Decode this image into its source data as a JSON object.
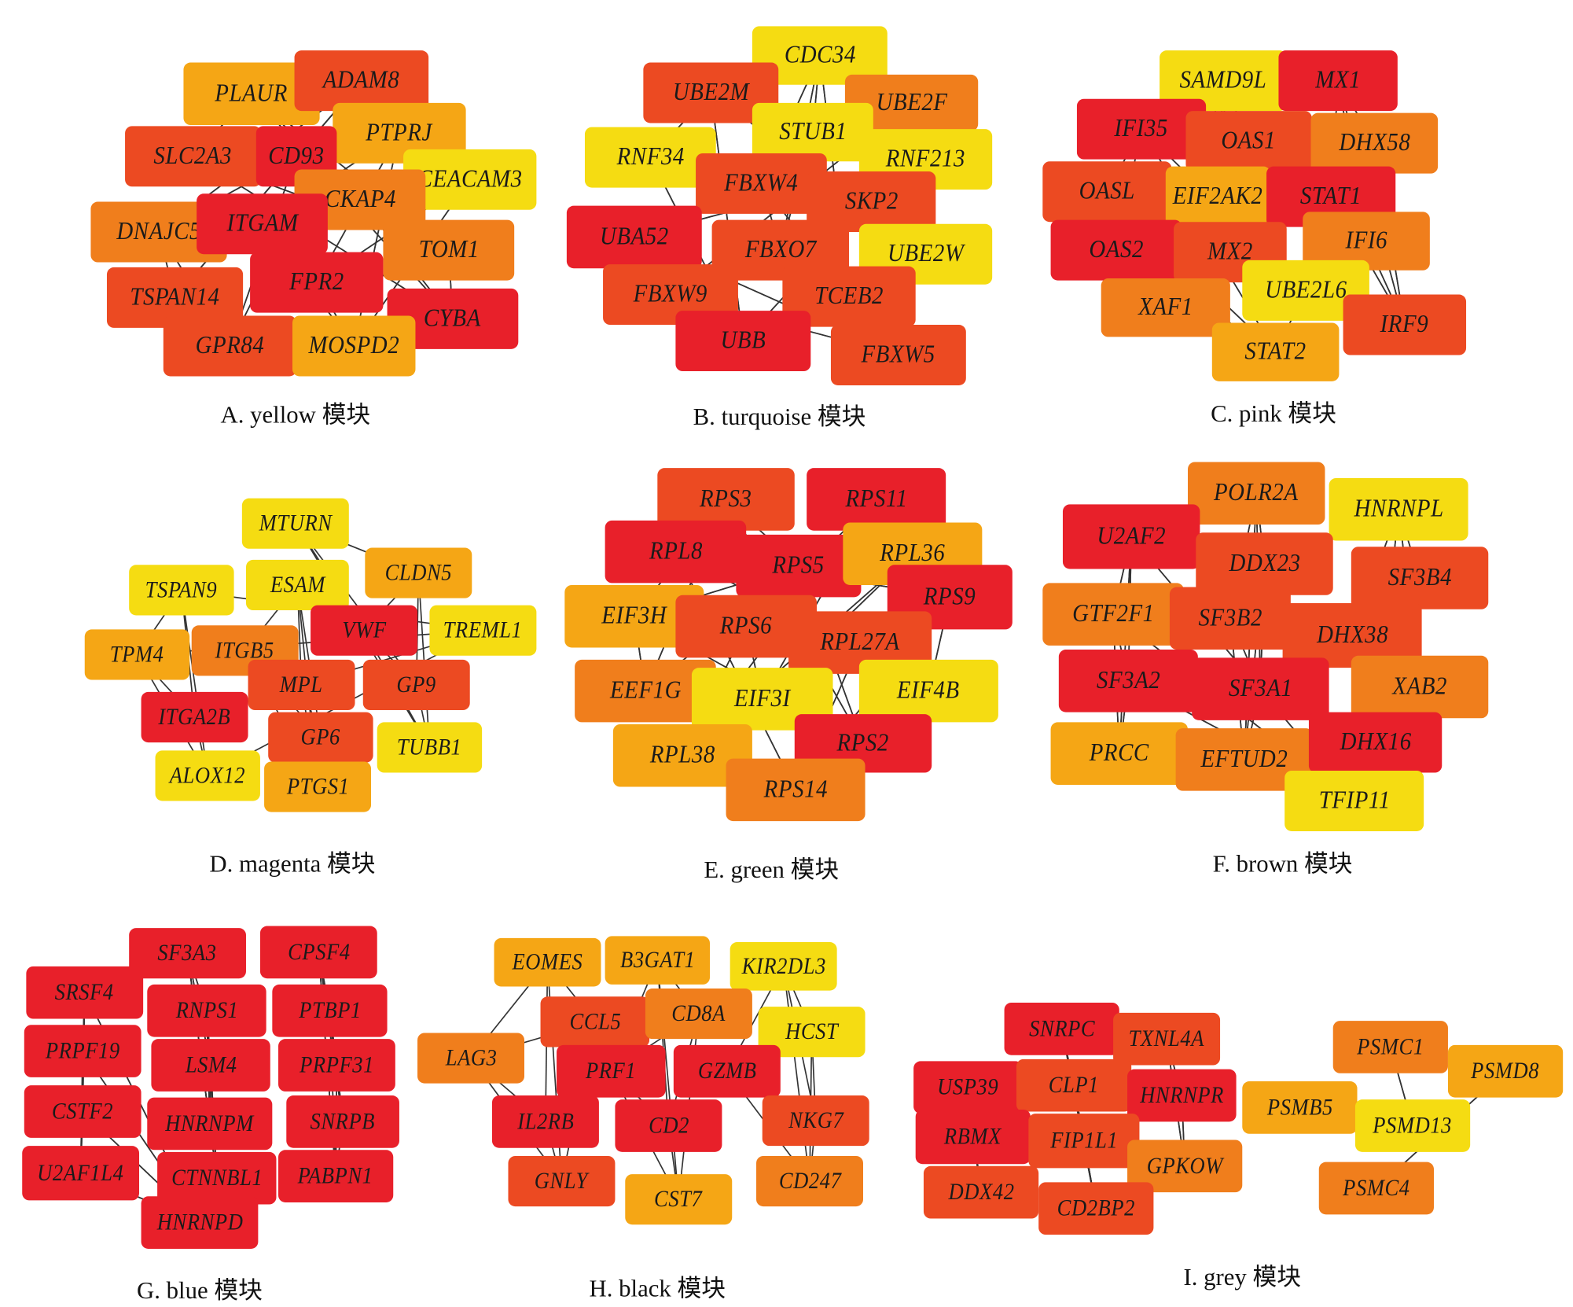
{
  "colors": {
    "R": "#e8202a",
    "OR": "#ec4a22",
    "O": "#f07e1c",
    "A": "#f5a615",
    "Y": "#f5dc12"
  },
  "panels": [
    {
      "label": "A. yellow 模块",
      "nodes": [
        {
          "name": "PLAUR",
          "color": "A"
        },
        {
          "name": "ADAM8",
          "color": "OR"
        },
        {
          "name": "PTPRJ",
          "color": "A"
        },
        {
          "name": "SLC2A3",
          "color": "OR"
        },
        {
          "name": "CD93",
          "color": "R"
        },
        {
          "name": "CEACAM3",
          "color": "Y"
        },
        {
          "name": "CKAP4",
          "color": "O"
        },
        {
          "name": "DNAJC5",
          "color": "O"
        },
        {
          "name": "ITGAM",
          "color": "R"
        },
        {
          "name": "TOM1",
          "color": "O"
        },
        {
          "name": "TSPAN14",
          "color": "OR"
        },
        {
          "name": "FPR2",
          "color": "R"
        },
        {
          "name": "CYBA",
          "color": "R"
        },
        {
          "name": "GPR84",
          "color": "OR"
        },
        {
          "name": "MOSPD2",
          "color": "A"
        }
      ]
    },
    {
      "label": "B. turquoise 模块",
      "nodes": [
        {
          "name": "CDC34",
          "color": "Y"
        },
        {
          "name": "UBE2M",
          "color": "OR"
        },
        {
          "name": "UBE2F",
          "color": "O"
        },
        {
          "name": "STUB1",
          "color": "Y"
        },
        {
          "name": "RNF34",
          "color": "Y"
        },
        {
          "name": "RNF213",
          "color": "Y"
        },
        {
          "name": "FBXW4",
          "color": "OR"
        },
        {
          "name": "SKP2",
          "color": "OR"
        },
        {
          "name": "UBA52",
          "color": "R"
        },
        {
          "name": "FBXO7",
          "color": "OR"
        },
        {
          "name": "UBE2W",
          "color": "Y"
        },
        {
          "name": "FBXW9",
          "color": "OR"
        },
        {
          "name": "TCEB2",
          "color": "OR"
        },
        {
          "name": "UBB",
          "color": "R"
        },
        {
          "name": "FBXW5",
          "color": "OR"
        }
      ]
    },
    {
      "label": "C. pink 模块",
      "nodes": [
        {
          "name": "SAMD9L",
          "color": "Y"
        },
        {
          "name": "MX1",
          "color": "R"
        },
        {
          "name": "IFI35",
          "color": "R"
        },
        {
          "name": "OAS1",
          "color": "OR"
        },
        {
          "name": "DHX58",
          "color": "O"
        },
        {
          "name": "OASL",
          "color": "OR"
        },
        {
          "name": "EIF2AK2",
          "color": "A"
        },
        {
          "name": "STAT1",
          "color": "R"
        },
        {
          "name": "OAS2",
          "color": "R"
        },
        {
          "name": "MX2",
          "color": "OR"
        },
        {
          "name": "IFI6",
          "color": "O"
        },
        {
          "name": "UBE2L6",
          "color": "Y"
        },
        {
          "name": "XAF1",
          "color": "O"
        },
        {
          "name": "IRF9",
          "color": "OR"
        },
        {
          "name": "STAT2",
          "color": "A"
        }
      ]
    },
    {
      "label": "D. magenta 模块",
      "nodes": [
        {
          "name": "MTURN",
          "color": "Y"
        },
        {
          "name": "TSPAN9",
          "color": "Y"
        },
        {
          "name": "ESAM",
          "color": "Y"
        },
        {
          "name": "CLDN5",
          "color": "A"
        },
        {
          "name": "TPM4",
          "color": "A"
        },
        {
          "name": "ITGB5",
          "color": "O"
        },
        {
          "name": "VWF",
          "color": "R"
        },
        {
          "name": "TREML1",
          "color": "Y"
        },
        {
          "name": "MPL",
          "color": "OR"
        },
        {
          "name": "GP9",
          "color": "OR"
        },
        {
          "name": "ITGA2B",
          "color": "R"
        },
        {
          "name": "GP6",
          "color": "OR"
        },
        {
          "name": "TUBB1",
          "color": "Y"
        },
        {
          "name": "ALOX12",
          "color": "Y"
        },
        {
          "name": "PTGS1",
          "color": "A"
        }
      ]
    },
    {
      "label": "E. green 模块",
      "nodes": [
        {
          "name": "RPS3",
          "color": "OR"
        },
        {
          "name": "RPS11",
          "color": "R"
        },
        {
          "name": "RPL8",
          "color": "R"
        },
        {
          "name": "RPS5",
          "color": "R"
        },
        {
          "name": "RPL36",
          "color": "A"
        },
        {
          "name": "RPS9",
          "color": "R"
        },
        {
          "name": "EIF3H",
          "color": "A"
        },
        {
          "name": "RPS6",
          "color": "OR"
        },
        {
          "name": "RPL27A",
          "color": "OR"
        },
        {
          "name": "EEF1G",
          "color": "O"
        },
        {
          "name": "EIF3I",
          "color": "Y"
        },
        {
          "name": "EIF4B",
          "color": "Y"
        },
        {
          "name": "RPS2",
          "color": "R"
        },
        {
          "name": "RPL38",
          "color": "A"
        },
        {
          "name": "RPS14",
          "color": "O"
        }
      ]
    },
    {
      "label": "F. brown 模块",
      "nodes": [
        {
          "name": "POLR2A",
          "color": "O"
        },
        {
          "name": "HNRNPL",
          "color": "Y"
        },
        {
          "name": "U2AF2",
          "color": "R"
        },
        {
          "name": "DDX23",
          "color": "OR"
        },
        {
          "name": "SF3B4",
          "color": "OR"
        },
        {
          "name": "GTF2F1",
          "color": "O"
        },
        {
          "name": "SF3B2",
          "color": "OR"
        },
        {
          "name": "DHX38",
          "color": "OR"
        },
        {
          "name": "SF3A2",
          "color": "R"
        },
        {
          "name": "SF3A1",
          "color": "R"
        },
        {
          "name": "XAB2",
          "color": "O"
        },
        {
          "name": "PRCC",
          "color": "A"
        },
        {
          "name": "EFTUD2",
          "color": "O"
        },
        {
          "name": "DHX16",
          "color": "R"
        },
        {
          "name": "TFIP11",
          "color": "Y"
        }
      ]
    },
    {
      "label": "G. blue 模块",
      "nodes": [
        {
          "name": "SF3A3",
          "color": "R"
        },
        {
          "name": "CPSF4",
          "color": "R"
        },
        {
          "name": "SRSF4",
          "color": "R"
        },
        {
          "name": "RNPS1",
          "color": "R"
        },
        {
          "name": "PTBP1",
          "color": "R"
        },
        {
          "name": "PRPF19",
          "color": "R"
        },
        {
          "name": "LSM4",
          "color": "R"
        },
        {
          "name": "PRPF31",
          "color": "R"
        },
        {
          "name": "CSTF2",
          "color": "R"
        },
        {
          "name": "HNRNPM",
          "color": "R"
        },
        {
          "name": "SNRPB",
          "color": "R"
        },
        {
          "name": "U2AF1L4",
          "color": "R"
        },
        {
          "name": "CTNNBL1",
          "color": "R"
        },
        {
          "name": "PABPN1",
          "color": "R"
        },
        {
          "name": "HNRNPD",
          "color": "R"
        }
      ]
    },
    {
      "label": "H. black 模块",
      "nodes": [
        {
          "name": "EOMES",
          "color": "A"
        },
        {
          "name": "B3GAT1",
          "color": "A"
        },
        {
          "name": "KIR2DL3",
          "color": "Y"
        },
        {
          "name": "CCL5",
          "color": "OR"
        },
        {
          "name": "CD8A",
          "color": "O"
        },
        {
          "name": "HCST",
          "color": "Y"
        },
        {
          "name": "LAG3",
          "color": "O"
        },
        {
          "name": "PRF1",
          "color": "R"
        },
        {
          "name": "GZMB",
          "color": "R"
        },
        {
          "name": "IL2RB",
          "color": "R"
        },
        {
          "name": "CD2",
          "color": "R"
        },
        {
          "name": "NKG7",
          "color": "OR"
        },
        {
          "name": "GNLY",
          "color": "OR"
        },
        {
          "name": "CST7",
          "color": "A"
        },
        {
          "name": "CD247",
          "color": "O"
        }
      ]
    },
    {
      "label": "I. grey 模块",
      "nodes": [
        {
          "name": "SNRPC",
          "color": "R"
        },
        {
          "name": "TXNL4A",
          "color": "OR"
        },
        {
          "name": "USP39",
          "color": "R"
        },
        {
          "name": "CLP1",
          "color": "OR"
        },
        {
          "name": "HNRNPR",
          "color": "R"
        },
        {
          "name": "RBMX",
          "color": "R"
        },
        {
          "name": "FIP1L1",
          "color": "OR"
        },
        {
          "name": "GPKOW",
          "color": "O"
        },
        {
          "name": "DDX42",
          "color": "OR"
        },
        {
          "name": "CD2BP2",
          "color": "OR"
        },
        {
          "name": "PSMC1",
          "color": "O"
        },
        {
          "name": "PSMD8",
          "color": "A"
        },
        {
          "name": "PSMB5",
          "color": "A"
        },
        {
          "name": "PSMD13",
          "color": "Y"
        },
        {
          "name": "PSMC4",
          "color": "O"
        }
      ]
    }
  ]
}
